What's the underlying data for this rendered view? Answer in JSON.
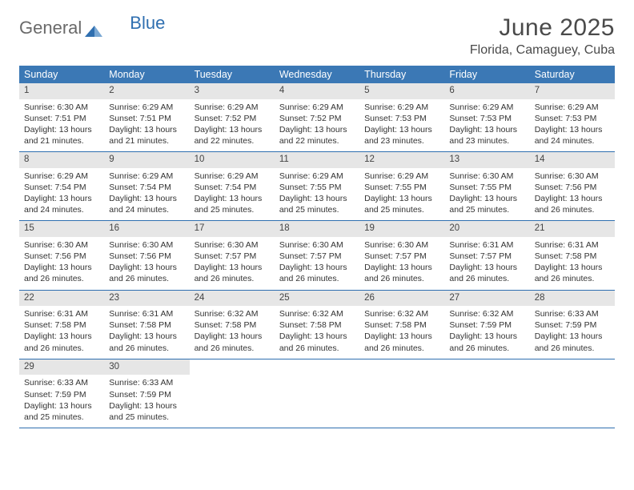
{
  "brand": {
    "part1": "General",
    "part2": "Blue"
  },
  "title": "June 2025",
  "location": "Florida, Camaguey, Cuba",
  "colors": {
    "header_bg": "#3b78b5",
    "header_text": "#ffffff",
    "daynum_bg": "#e6e6e6",
    "rule": "#2f6fb0",
    "text": "#333333",
    "title_text": "#4a4a4a"
  },
  "typography": {
    "title_fontsize": 30,
    "location_fontsize": 16,
    "dow_fontsize": 12.5,
    "body_fontsize": 10.5
  },
  "days_of_week": [
    "Sunday",
    "Monday",
    "Tuesday",
    "Wednesday",
    "Thursday",
    "Friday",
    "Saturday"
  ],
  "labels": {
    "sunrise": "Sunrise:",
    "sunset": "Sunset:",
    "daylight": "Daylight:"
  },
  "weeks": [
    [
      {
        "n": "1",
        "sunrise": "6:30 AM",
        "sunset": "7:51 PM",
        "daylight": "13 hours and 21 minutes."
      },
      {
        "n": "2",
        "sunrise": "6:29 AM",
        "sunset": "7:51 PM",
        "daylight": "13 hours and 21 minutes."
      },
      {
        "n": "3",
        "sunrise": "6:29 AM",
        "sunset": "7:52 PM",
        "daylight": "13 hours and 22 minutes."
      },
      {
        "n": "4",
        "sunrise": "6:29 AM",
        "sunset": "7:52 PM",
        "daylight": "13 hours and 22 minutes."
      },
      {
        "n": "5",
        "sunrise": "6:29 AM",
        "sunset": "7:53 PM",
        "daylight": "13 hours and 23 minutes."
      },
      {
        "n": "6",
        "sunrise": "6:29 AM",
        "sunset": "7:53 PM",
        "daylight": "13 hours and 23 minutes."
      },
      {
        "n": "7",
        "sunrise": "6:29 AM",
        "sunset": "7:53 PM",
        "daylight": "13 hours and 24 minutes."
      }
    ],
    [
      {
        "n": "8",
        "sunrise": "6:29 AM",
        "sunset": "7:54 PM",
        "daylight": "13 hours and 24 minutes."
      },
      {
        "n": "9",
        "sunrise": "6:29 AM",
        "sunset": "7:54 PM",
        "daylight": "13 hours and 24 minutes."
      },
      {
        "n": "10",
        "sunrise": "6:29 AM",
        "sunset": "7:54 PM",
        "daylight": "13 hours and 25 minutes."
      },
      {
        "n": "11",
        "sunrise": "6:29 AM",
        "sunset": "7:55 PM",
        "daylight": "13 hours and 25 minutes."
      },
      {
        "n": "12",
        "sunrise": "6:29 AM",
        "sunset": "7:55 PM",
        "daylight": "13 hours and 25 minutes."
      },
      {
        "n": "13",
        "sunrise": "6:30 AM",
        "sunset": "7:55 PM",
        "daylight": "13 hours and 25 minutes."
      },
      {
        "n": "14",
        "sunrise": "6:30 AM",
        "sunset": "7:56 PM",
        "daylight": "13 hours and 26 minutes."
      }
    ],
    [
      {
        "n": "15",
        "sunrise": "6:30 AM",
        "sunset": "7:56 PM",
        "daylight": "13 hours and 26 minutes."
      },
      {
        "n": "16",
        "sunrise": "6:30 AM",
        "sunset": "7:56 PM",
        "daylight": "13 hours and 26 minutes."
      },
      {
        "n": "17",
        "sunrise": "6:30 AM",
        "sunset": "7:57 PM",
        "daylight": "13 hours and 26 minutes."
      },
      {
        "n": "18",
        "sunrise": "6:30 AM",
        "sunset": "7:57 PM",
        "daylight": "13 hours and 26 minutes."
      },
      {
        "n": "19",
        "sunrise": "6:30 AM",
        "sunset": "7:57 PM",
        "daylight": "13 hours and 26 minutes."
      },
      {
        "n": "20",
        "sunrise": "6:31 AM",
        "sunset": "7:57 PM",
        "daylight": "13 hours and 26 minutes."
      },
      {
        "n": "21",
        "sunrise": "6:31 AM",
        "sunset": "7:58 PM",
        "daylight": "13 hours and 26 minutes."
      }
    ],
    [
      {
        "n": "22",
        "sunrise": "6:31 AM",
        "sunset": "7:58 PM",
        "daylight": "13 hours and 26 minutes."
      },
      {
        "n": "23",
        "sunrise": "6:31 AM",
        "sunset": "7:58 PM",
        "daylight": "13 hours and 26 minutes."
      },
      {
        "n": "24",
        "sunrise": "6:32 AM",
        "sunset": "7:58 PM",
        "daylight": "13 hours and 26 minutes."
      },
      {
        "n": "25",
        "sunrise": "6:32 AM",
        "sunset": "7:58 PM",
        "daylight": "13 hours and 26 minutes."
      },
      {
        "n": "26",
        "sunrise": "6:32 AM",
        "sunset": "7:58 PM",
        "daylight": "13 hours and 26 minutes."
      },
      {
        "n": "27",
        "sunrise": "6:32 AM",
        "sunset": "7:59 PM",
        "daylight": "13 hours and 26 minutes."
      },
      {
        "n": "28",
        "sunrise": "6:33 AM",
        "sunset": "7:59 PM",
        "daylight": "13 hours and 26 minutes."
      }
    ],
    [
      {
        "n": "29",
        "sunrise": "6:33 AM",
        "sunset": "7:59 PM",
        "daylight": "13 hours and 25 minutes."
      },
      {
        "n": "30",
        "sunrise": "6:33 AM",
        "sunset": "7:59 PM",
        "daylight": "13 hours and 25 minutes."
      },
      null,
      null,
      null,
      null,
      null
    ]
  ]
}
